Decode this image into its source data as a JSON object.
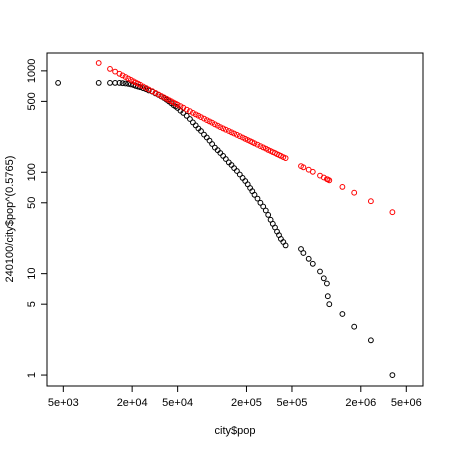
{
  "chart_data": {
    "type": "scatter",
    "xlabel": "city$pop",
    "ylabel": "240100/city$pop^(0.5765)",
    "x_scale": "log",
    "y_scale": "log",
    "xlim": [
      3600,
      7000000
    ],
    "ylim": [
      0.78,
      1500
    ],
    "grid": false,
    "x_ticks": [
      {
        "value": 5000,
        "label": "5e+03"
      },
      {
        "value": 20000,
        "label": "2e+04"
      },
      {
        "value": 50000,
        "label": "5e+04"
      },
      {
        "value": 200000,
        "label": "2e+05"
      },
      {
        "value": 500000,
        "label": "5e+05"
      },
      {
        "value": 2000000,
        "label": "2e+06"
      },
      {
        "value": 5000000,
        "label": "5e+06"
      }
    ],
    "y_ticks": [
      {
        "value": 1,
        "label": "1"
      },
      {
        "value": 5,
        "label": "5"
      },
      {
        "value": 10,
        "label": "10"
      },
      {
        "value": 50,
        "label": "50"
      },
      {
        "value": 100,
        "label": "100"
      },
      {
        "value": 500,
        "label": "500"
      },
      {
        "value": 1000,
        "label": "1000"
      }
    ],
    "series": [
      {
        "color": "#000000",
        "marker": "open-circle",
        "x": [
          4500,
          10200,
          12800,
          14200,
          15500,
          16500,
          17500,
          18500,
          19500,
          20500,
          21500,
          22500,
          23500,
          25000,
          26500,
          28000,
          30000,
          32000,
          34000,
          36000,
          38000,
          40000,
          42000,
          44000,
          46000,
          48000,
          50000,
          53000,
          56000,
          60000,
          64000,
          68000,
          72000,
          76000,
          80000,
          85000,
          90000,
          95000,
          100000,
          106000,
          112000,
          118000,
          125000,
          132000,
          140000,
          148000,
          156000,
          165000,
          175000,
          185000,
          195000,
          205000,
          215000,
          225000,
          235000,
          250000,
          265000,
          280000,
          295000,
          310000,
          325000,
          340000,
          355000,
          370000,
          385000,
          400000,
          420000,
          440000,
          600000,
          630000,
          700000,
          760000,
          880000,
          950000,
          1010000,
          1030000,
          1060000,
          1380000,
          1750000,
          2450000,
          3780000
        ],
        "y": [
          760,
          760,
          760,
          760,
          760,
          755,
          750,
          745,
          735,
          725,
          710,
          700,
          690,
          675,
          660,
          640,
          625,
          600,
          580,
          560,
          540,
          520,
          500,
          480,
          460,
          445,
          430,
          405,
          385,
          360,
          335,
          310,
          290,
          270,
          255,
          235,
          220,
          205,
          190,
          175,
          165,
          155,
          145,
          135,
          125,
          118,
          110,
          103,
          95,
          88,
          82,
          76,
          70,
          65,
          60,
          55,
          50,
          46,
          42,
          38,
          34,
          31,
          28.5,
          26,
          24,
          22,
          20.5,
          19,
          17.5,
          16,
          14,
          12.5,
          10.5,
          9,
          8,
          6,
          5,
          4,
          3,
          2.2,
          1
        ]
      },
      {
        "color": "#ff0000",
        "marker": "open-circle",
        "x": [
          10200,
          12800,
          14200,
          15500,
          16500,
          17500,
          18500,
          19500,
          20500,
          21500,
          22500,
          23500,
          25000,
          26500,
          28000,
          30000,
          32000,
          34000,
          36000,
          38000,
          40000,
          42000,
          44000,
          46000,
          48000,
          50000,
          53000,
          56000,
          60000,
          64000,
          68000,
          72000,
          76000,
          80000,
          85000,
          90000,
          95000,
          100000,
          106000,
          112000,
          118000,
          125000,
          132000,
          140000,
          148000,
          156000,
          165000,
          175000,
          185000,
          195000,
          205000,
          215000,
          225000,
          235000,
          250000,
          265000,
          280000,
          295000,
          310000,
          325000,
          340000,
          355000,
          370000,
          385000,
          400000,
          420000,
          440000,
          600000,
          630000,
          700000,
          760000,
          880000,
          950000,
          1010000,
          1030000,
          1060000,
          1380000,
          1750000,
          2450000,
          3780000
        ],
        "y": [
          1195,
          1045,
          984,
          936,
          902,
          870,
          840,
          814,
          789,
          767,
          747,
          728,
          701,
          677,
          655,
          630,
          606,
          584,
          565,
          547,
          530,
          515,
          501,
          488,
          475,
          464,
          448,
          433,
          415,
          400,
          385,
          372,
          361,
          350,
          338,
          327,
          317,
          308,
          297,
          288,
          279,
          271,
          263,
          255,
          248,
          241,
          234,
          227,
          220,
          214,
          208,
          203,
          198,
          193,
          187,
          181,
          176,
          171,
          166,
          162,
          158,
          155,
          151,
          148,
          145,
          141,
          138,
          115,
          112,
          106,
          101,
          92.7,
          88.8,
          85.7,
          84.8,
          83.4,
          71.7,
          62.9,
          51.8,
          40.4
        ]
      }
    ]
  }
}
